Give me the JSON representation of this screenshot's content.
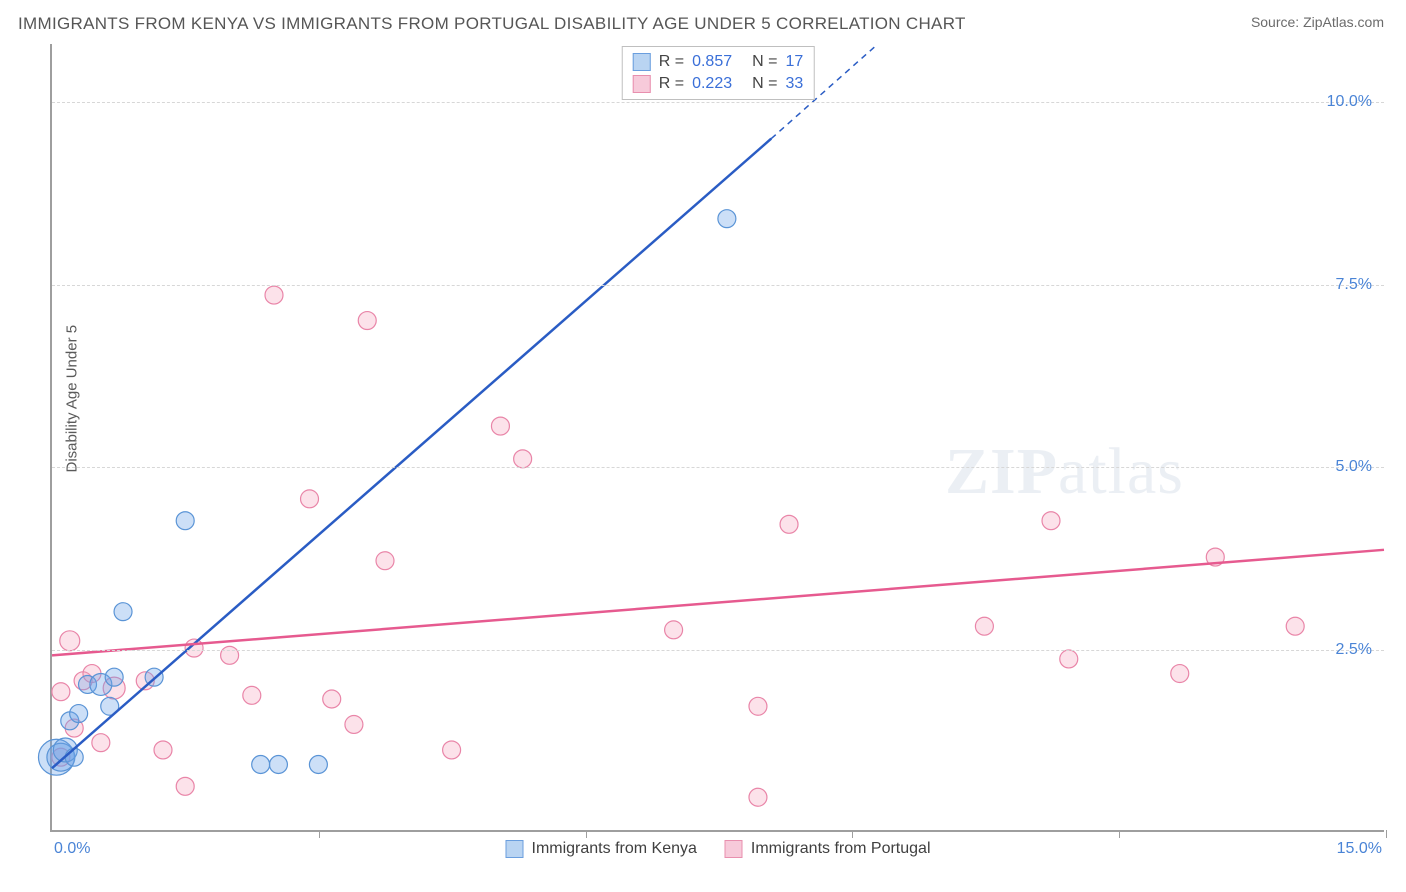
{
  "title": "IMMIGRANTS FROM KENYA VS IMMIGRANTS FROM PORTUGAL DISABILITY AGE UNDER 5 CORRELATION CHART",
  "source": "Source: ZipAtlas.com",
  "watermark": {
    "bold": "ZIP",
    "light": "atlas"
  },
  "chart": {
    "type": "scatter",
    "background_color": "#ffffff",
    "grid_color": "#d7d7d7",
    "axis_color": "#9e9e9e",
    "ylabel": "Disability Age Under 5",
    "ylabel_fontsize": 15,
    "label_color": "#5a5a5a",
    "tick_label_color": "#4a84d6",
    "tick_fontsize": 16,
    "xlim": [
      0,
      15.0
    ],
    "ylim": [
      0,
      10.8
    ],
    "x_tick_labels": {
      "left": "0.0%",
      "right": "15.0%"
    },
    "y_ticks": [
      {
        "value": 2.5,
        "label": "2.5%"
      },
      {
        "value": 5.0,
        "label": "5.0%"
      },
      {
        "value": 7.5,
        "label": "7.5%"
      },
      {
        "value": 10.0,
        "label": "10.0%"
      }
    ],
    "x_grid_positions": [
      3.0,
      6.0,
      9.0,
      12.0,
      15.0
    ],
    "series": [
      {
        "name": "Immigrants from Kenya",
        "key": "kenya",
        "color_fill": "rgba(109,163,232,0.35)",
        "color_stroke": "#5a94d6",
        "swatch_fill": "#b9d4f2",
        "swatch_border": "#6a9ede",
        "R": "0.857",
        "N": "17",
        "trend": {
          "x1": 0.0,
          "y1": 0.85,
          "x2": 9.3,
          "y2": 10.8,
          "solid_end_x": 8.1,
          "solid_end_y": 9.5,
          "width": 2.5,
          "color": "#2a5cc4"
        },
        "points": [
          {
            "x": 0.05,
            "y": 1.0,
            "r": 18
          },
          {
            "x": 0.1,
            "y": 1.0,
            "r": 14
          },
          {
            "x": 0.15,
            "y": 1.1,
            "r": 12
          },
          {
            "x": 0.2,
            "y": 1.5,
            "r": 9
          },
          {
            "x": 0.25,
            "y": 1.0,
            "r": 9
          },
          {
            "x": 0.3,
            "y": 1.6,
            "r": 9
          },
          {
            "x": 0.4,
            "y": 2.0,
            "r": 9
          },
          {
            "x": 0.55,
            "y": 2.0,
            "r": 11
          },
          {
            "x": 0.65,
            "y": 1.7,
            "r": 9
          },
          {
            "x": 0.7,
            "y": 2.1,
            "r": 9
          },
          {
            "x": 0.8,
            "y": 3.0,
            "r": 9
          },
          {
            "x": 1.15,
            "y": 2.1,
            "r": 9
          },
          {
            "x": 1.5,
            "y": 4.25,
            "r": 9
          },
          {
            "x": 2.35,
            "y": 0.9,
            "r": 9
          },
          {
            "x": 2.55,
            "y": 0.9,
            "r": 9
          },
          {
            "x": 3.0,
            "y": 0.9,
            "r": 9
          },
          {
            "x": 7.6,
            "y": 8.4,
            "r": 9
          }
        ]
      },
      {
        "name": "Immigrants from Portugal",
        "key": "portugal",
        "color_fill": "rgba(244,158,185,0.30)",
        "color_stroke": "#e985a8",
        "swatch_fill": "#f7cada",
        "swatch_border": "#e88fae",
        "R": "0.223",
        "N": "33",
        "trend": {
          "x1": 0.0,
          "y1": 2.4,
          "x2": 15.0,
          "y2": 3.85,
          "width": 2.5,
          "color": "#e65a8f"
        },
        "points": [
          {
            "x": 0.1,
            "y": 1.0,
            "r": 9
          },
          {
            "x": 0.1,
            "y": 1.9,
            "r": 9
          },
          {
            "x": 0.2,
            "y": 2.6,
            "r": 10
          },
          {
            "x": 0.25,
            "y": 1.4,
            "r": 9
          },
          {
            "x": 0.35,
            "y": 2.05,
            "r": 9
          },
          {
            "x": 0.45,
            "y": 2.15,
            "r": 9
          },
          {
            "x": 0.55,
            "y": 1.2,
            "r": 9
          },
          {
            "x": 0.7,
            "y": 1.95,
            "r": 11
          },
          {
            "x": 1.05,
            "y": 2.05,
            "r": 9
          },
          {
            "x": 1.25,
            "y": 1.1,
            "r": 9
          },
          {
            "x": 1.5,
            "y": 0.6,
            "r": 9
          },
          {
            "x": 1.6,
            "y": 2.5,
            "r": 9
          },
          {
            "x": 2.0,
            "y": 2.4,
            "r": 9
          },
          {
            "x": 2.25,
            "y": 1.85,
            "r": 9
          },
          {
            "x": 2.5,
            "y": 7.35,
            "r": 9
          },
          {
            "x": 2.9,
            "y": 4.55,
            "r": 9
          },
          {
            "x": 3.15,
            "y": 1.8,
            "r": 9
          },
          {
            "x": 3.4,
            "y": 1.45,
            "r": 9
          },
          {
            "x": 3.55,
            "y": 7.0,
            "r": 9
          },
          {
            "x": 3.75,
            "y": 3.7,
            "r": 9
          },
          {
            "x": 4.5,
            "y": 1.1,
            "r": 9
          },
          {
            "x": 5.05,
            "y": 5.55,
            "r": 9
          },
          {
            "x": 5.3,
            "y": 5.1,
            "r": 9
          },
          {
            "x": 7.0,
            "y": 2.75,
            "r": 9
          },
          {
            "x": 7.95,
            "y": 1.7,
            "r": 9
          },
          {
            "x": 7.95,
            "y": 0.45,
            "r": 9
          },
          {
            "x": 8.3,
            "y": 4.2,
            "r": 9
          },
          {
            "x": 10.5,
            "y": 2.8,
            "r": 9
          },
          {
            "x": 11.25,
            "y": 4.25,
            "r": 9
          },
          {
            "x": 11.45,
            "y": 2.35,
            "r": 9
          },
          {
            "x": 12.7,
            "y": 2.15,
            "r": 9
          },
          {
            "x": 13.1,
            "y": 3.75,
            "r": 9
          },
          {
            "x": 14.0,
            "y": 2.8,
            "r": 9
          }
        ]
      }
    ]
  }
}
